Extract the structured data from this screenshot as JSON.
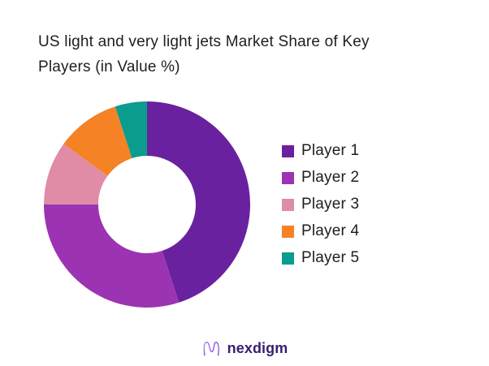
{
  "title": "US light and very light jets Market Share of Key\nPlayers (in Value %)",
  "chart_data": {
    "type": "pie",
    "subtype": "donut",
    "title": "US light and very light jets Market Share of Key Players (in Value %)",
    "unit": "value %",
    "categories": [
      "Player 1",
      "Player 2",
      "Player 3",
      "Player 4",
      "Player 5"
    ],
    "values": [
      45,
      30,
      10,
      10,
      5
    ],
    "colors": [
      "#6A21A0",
      "#9C33B2",
      "#E08CA6",
      "#F58224",
      "#0A9C8D"
    ],
    "start_angle_deg": 0,
    "direction": "clockwise",
    "inner_radius_ratio": 0.47,
    "legend_position": "right",
    "data_labels": false
  },
  "brand": {
    "name": "nexdigm",
    "wordmark_color": "#3A1E6E",
    "mark_gradient": [
      "#A78BFA",
      "#7C3AED"
    ]
  }
}
